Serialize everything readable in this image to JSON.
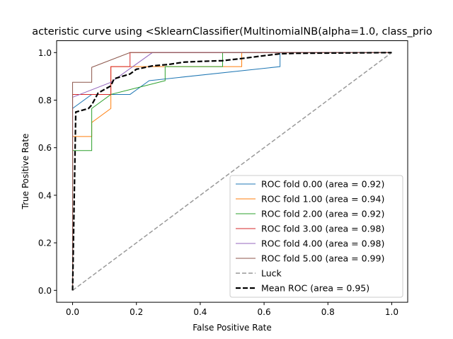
{
  "chart_data": {
    "type": "line",
    "title": "acteristic curve using <SklearnClassifier(MultinomialNB(alpha=1.0, class_prio",
    "xlabel": "False Positive Rate",
    "ylabel": "True Positive Rate",
    "xlim": [
      -0.05,
      1.05
    ],
    "ylim": [
      -0.05,
      1.05
    ],
    "xticks": [
      "0.0",
      "0.2",
      "0.4",
      "0.6",
      "0.8",
      "1.0"
    ],
    "yticks": [
      "0.0",
      "0.2",
      "0.4",
      "0.6",
      "0.8",
      "1.0"
    ],
    "grid": false,
    "legend_position": "lower-right",
    "series": [
      {
        "name": "ROC fold 0.00 (area = 0.92)",
        "color": "#1f77b4",
        "dash": "solid",
        "x": [
          0,
          0,
          0.06,
          0.06,
          0.18,
          0.24,
          0.65,
          0.65,
          1.0
        ],
        "y": [
          0,
          0.765,
          0.824,
          0.824,
          0.824,
          0.882,
          0.941,
          1.0,
          1.0
        ]
      },
      {
        "name": "ROC fold 1.00 (area = 0.94)",
        "color": "#ff7f0e",
        "dash": "solid",
        "x": [
          0,
          0,
          0.06,
          0.06,
          0.12,
          0.12,
          0.24,
          0.53,
          0.53,
          1.0
        ],
        "y": [
          0,
          0.647,
          0.647,
          0.706,
          0.765,
          0.941,
          0.941,
          0.941,
          1.0,
          1.0
        ]
      },
      {
        "name": "ROC fold 2.00 (area = 0.92)",
        "color": "#2ca02c",
        "dash": "solid",
        "x": [
          0,
          0,
          0.06,
          0.06,
          0.12,
          0.29,
          0.29,
          0.47,
          0.47,
          1.0
        ],
        "y": [
          0,
          0.588,
          0.588,
          0.765,
          0.824,
          0.882,
          0.941,
          0.941,
          1.0,
          1.0
        ]
      },
      {
        "name": "ROC fold 3.00 (area = 0.98)",
        "color": "#d62728",
        "dash": "solid",
        "x": [
          0,
          0,
          0.12,
          0.12,
          0.18,
          0.18,
          1.0
        ],
        "y": [
          0,
          0.824,
          0.824,
          0.941,
          0.941,
          1.0,
          1.0
        ]
      },
      {
        "name": "ROC fold 4.00 (area = 0.98)",
        "color": "#9467bd",
        "dash": "solid",
        "x": [
          0,
          0,
          0.12,
          0.12,
          0.25,
          1.0
        ],
        "y": [
          0,
          0.812,
          0.875,
          0.875,
          1.0,
          1.0
        ]
      },
      {
        "name": "ROC fold 5.00 (area = 0.99)",
        "color": "#8c564b",
        "dash": "solid",
        "x": [
          0,
          0,
          0.06,
          0.06,
          0.18,
          1.0
        ],
        "y": [
          0,
          0.875,
          0.875,
          0.938,
          1.0,
          1.0
        ]
      },
      {
        "name": "Luck",
        "color": "#999999",
        "dash": "dashed",
        "x": [
          0,
          1
        ],
        "y": [
          0,
          1
        ]
      },
      {
        "name": "Mean ROC (area = 0.95)",
        "color": "#000000",
        "dash": "dashed-bold",
        "x": [
          0,
          0.01,
          0.05,
          0.06,
          0.08,
          0.12,
          0.13,
          0.18,
          0.2,
          0.25,
          0.3,
          0.35,
          0.4,
          0.47,
          0.53,
          0.6,
          0.65,
          0.7,
          0.8,
          0.9,
          1.0
        ],
        "y": [
          0,
          0.75,
          0.765,
          0.78,
          0.83,
          0.86,
          0.89,
          0.91,
          0.93,
          0.944,
          0.95,
          0.96,
          0.963,
          0.966,
          0.975,
          0.987,
          0.995,
          0.997,
          0.998,
          0.999,
          1.0
        ]
      }
    ]
  }
}
